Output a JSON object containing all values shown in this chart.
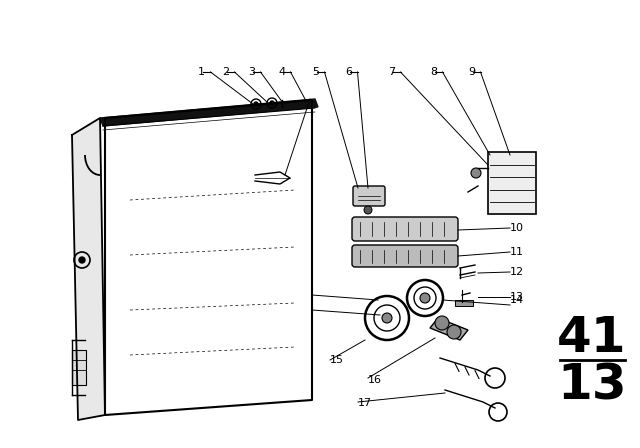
{
  "bg_color": "#ffffff",
  "line_color": "#000000",
  "fig_width": 6.4,
  "fig_height": 4.48,
  "dpi": 100,
  "title_number_top": "41",
  "title_number_bottom": "13",
  "title_fontsize": 36
}
